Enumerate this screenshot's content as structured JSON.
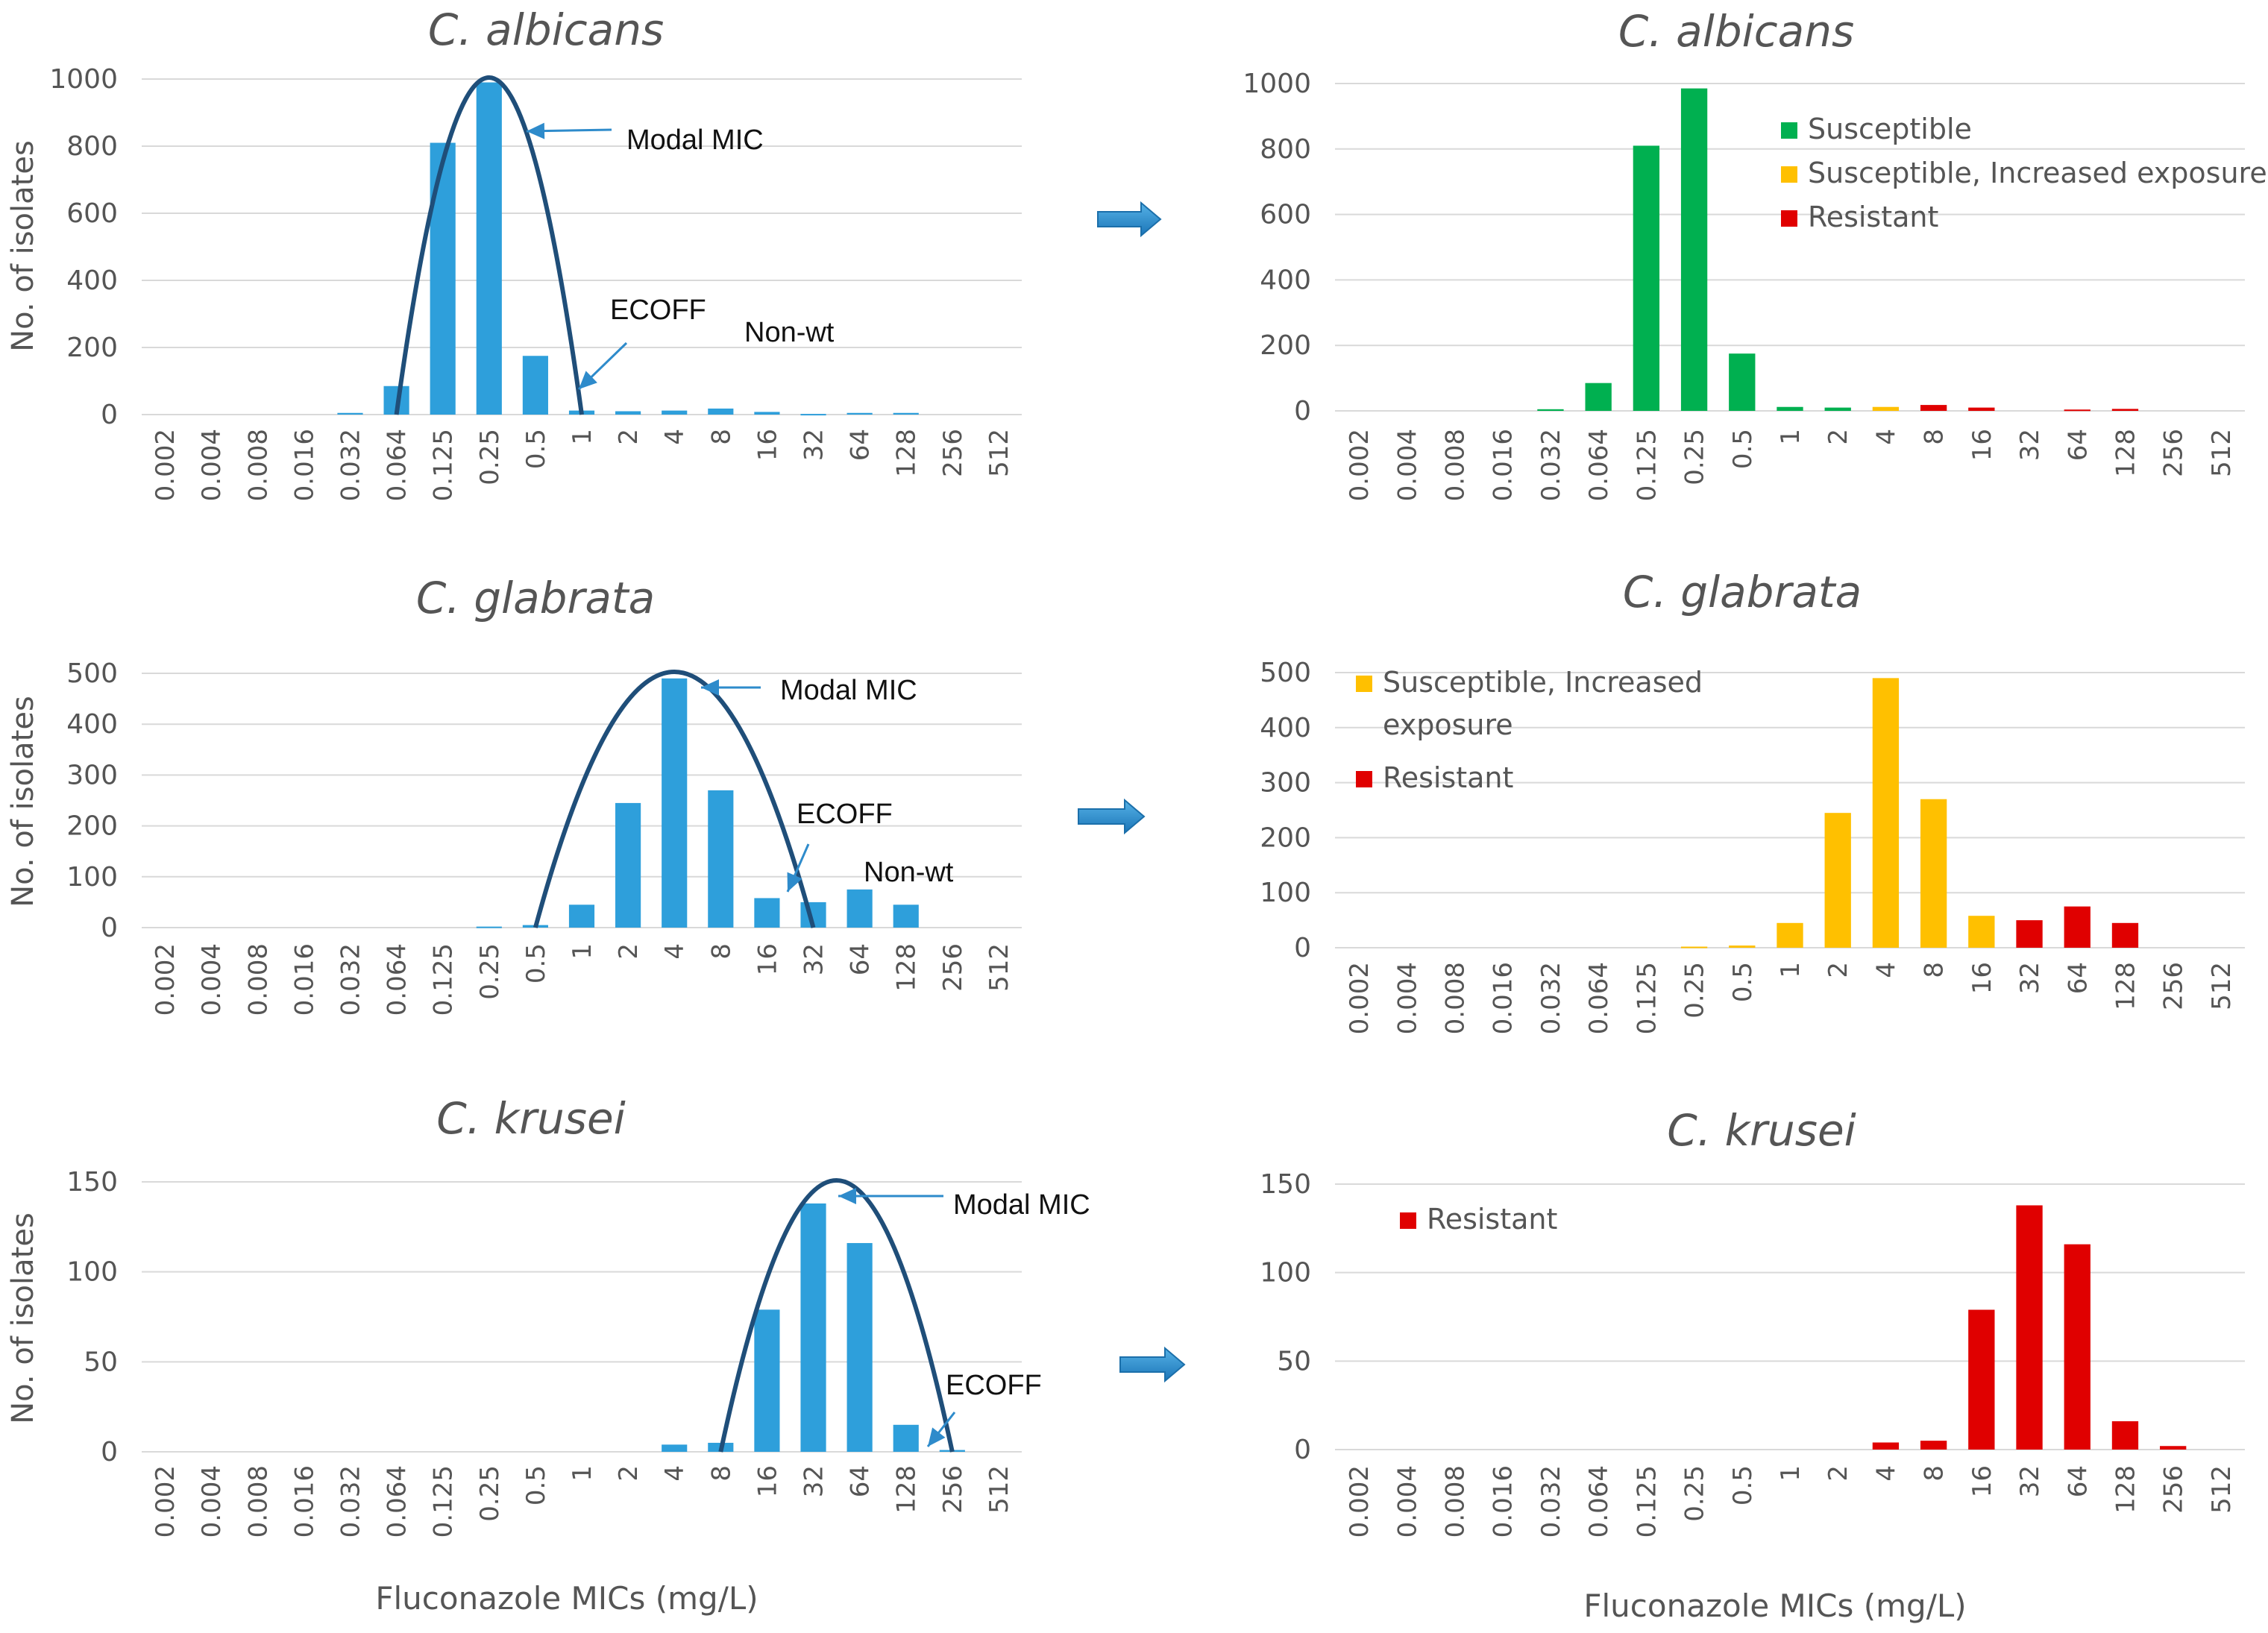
{
  "colors": {
    "wt_bar": "#2E9FDB",
    "curve": "#1F4E79",
    "arrow": "#2E8BCB",
    "susceptible": "#00B050",
    "increased": "#FFC000",
    "resistant": "#E00000",
    "grid": "#D9D9D9",
    "text": "#555555"
  },
  "chart_data": [
    {
      "id": "albicans-ecoff",
      "type": "bar",
      "title": "C. albicans",
      "xlabel": "",
      "ylabel": "No. of isolates",
      "ylim": [
        0,
        1000
      ],
      "yticks": [
        0,
        200,
        400,
        600,
        800,
        1000
      ],
      "categories": [
        "0.002",
        "0.004",
        "0.008",
        "0.016",
        "0.032",
        "0.064",
        "0.125",
        "0.25",
        "0.5",
        "1",
        "2",
        "4",
        "8",
        "16",
        "32",
        "64",
        "128",
        "256",
        "512"
      ],
      "values": [
        0,
        0,
        0,
        0,
        5,
        85,
        810,
        990,
        175,
        12,
        10,
        12,
        18,
        8,
        2,
        5,
        5,
        0,
        0
      ],
      "curve": {
        "label": "wild-type distribution",
        "from": "0.064",
        "to": "1"
      },
      "annotations": [
        {
          "text": "Modal MIC",
          "points_to": "0.25"
        },
        {
          "text": "ECOFF",
          "points_to": "1"
        },
        {
          "text": "Non-wt",
          "points_to": "above 1"
        }
      ]
    },
    {
      "id": "albicans-breakpoints",
      "type": "bar",
      "title": "C. albicans",
      "xlabel": "",
      "ylabel": "",
      "ylim": [
        0,
        1000
      ],
      "yticks": [
        0,
        200,
        400,
        600,
        800,
        1000
      ],
      "categories": [
        "0.002",
        "0.004",
        "0.008",
        "0.016",
        "0.032",
        "0.064",
        "0.125",
        "0.25",
        "0.5",
        "1",
        "2",
        "4",
        "8",
        "16",
        "32",
        "64",
        "128",
        "256",
        "512"
      ],
      "values": [
        0,
        0,
        0,
        0,
        5,
        85,
        810,
        985,
        175,
        12,
        10,
        12,
        18,
        10,
        0,
        4,
        6,
        0,
        0
      ],
      "bar_categories": [
        "S",
        "S",
        "S",
        "S",
        "S",
        "S",
        "S",
        "S",
        "S",
        "S",
        "S",
        "I",
        "R",
        "R",
        "R",
        "R",
        "R",
        "R",
        "R"
      ],
      "legend": [
        {
          "key": "S",
          "label": "Susceptible"
        },
        {
          "key": "I",
          "label": "Susceptible, Increased exposure"
        },
        {
          "key": "R",
          "label": "Resistant"
        }
      ],
      "legend_position": "top-right"
    },
    {
      "id": "glabrata-ecoff",
      "type": "bar",
      "title": "C. glabrata",
      "xlabel": "",
      "ylabel": "No. of isolates",
      "ylim": [
        0,
        500
      ],
      "yticks": [
        0,
        100,
        200,
        300,
        400,
        500
      ],
      "categories": [
        "0.002",
        "0.004",
        "0.008",
        "0.016",
        "0.032",
        "0.064",
        "0.125",
        "0.25",
        "0.5",
        "1",
        "2",
        "4",
        "8",
        "16",
        "32",
        "64",
        "128",
        "256",
        "512"
      ],
      "values": [
        0,
        0,
        0,
        0,
        0,
        0,
        0,
        2,
        5,
        45,
        245,
        490,
        270,
        58,
        50,
        75,
        45,
        0,
        0
      ],
      "curve": {
        "label": "wild-type distribution",
        "from": "0.5",
        "to": "32"
      },
      "annotations": [
        {
          "text": "Modal MIC",
          "points_to": "4"
        },
        {
          "text": "ECOFF",
          "points_to": "16"
        },
        {
          "text": "Non-wt",
          "points_to": "above 16"
        }
      ]
    },
    {
      "id": "glabrata-breakpoints",
      "type": "bar",
      "title": "C. glabrata",
      "xlabel": "",
      "ylabel": "",
      "ylim": [
        0,
        500
      ],
      "yticks": [
        0,
        100,
        200,
        300,
        400,
        500
      ],
      "categories": [
        "0.002",
        "0.004",
        "0.008",
        "0.016",
        "0.032",
        "0.064",
        "0.125",
        "0.25",
        "0.5",
        "1",
        "2",
        "4",
        "8",
        "16",
        "32",
        "64",
        "128",
        "256",
        "512"
      ],
      "values": [
        0,
        0,
        0,
        0,
        0,
        0,
        0,
        2,
        4,
        45,
        245,
        490,
        270,
        58,
        50,
        75,
        45,
        0,
        0
      ],
      "bar_categories": [
        "I",
        "I",
        "I",
        "I",
        "I",
        "I",
        "I",
        "I",
        "I",
        "I",
        "I",
        "I",
        "I",
        "I",
        "R",
        "R",
        "R",
        "R",
        "R"
      ],
      "legend": [
        {
          "key": "I",
          "label_lines": [
            "Susceptible, Increased",
            "exposure"
          ]
        },
        {
          "key": "R",
          "label_lines": [
            "Resistant"
          ]
        }
      ],
      "legend_position": "top-left"
    },
    {
      "id": "krusei-ecoff",
      "type": "bar",
      "title": "C. krusei",
      "xlabel": "Fluconazole MICs (mg/L)",
      "ylabel": "No. of isolates",
      "ylim": [
        0,
        150
      ],
      "yticks": [
        0,
        50,
        100,
        150
      ],
      "categories": [
        "0.002",
        "0.004",
        "0.008",
        "0.016",
        "0.032",
        "0.064",
        "0.125",
        "0.25",
        "0.5",
        "1",
        "2",
        "4",
        "8",
        "16",
        "32",
        "64",
        "128",
        "256",
        "512"
      ],
      "values": [
        0,
        0,
        0,
        0,
        0,
        0,
        0,
        0,
        0,
        0,
        0,
        4,
        5,
        79,
        138,
        116,
        15,
        1,
        0
      ],
      "curve": {
        "label": "wild-type distribution",
        "from": "8",
        "to": "256"
      },
      "annotations": [
        {
          "text": "Modal MIC",
          "points_to": "32"
        },
        {
          "text": "ECOFF",
          "points_to": "128"
        }
      ]
    },
    {
      "id": "krusei-breakpoints",
      "type": "bar",
      "title": "C. krusei",
      "xlabel": "Fluconazole MICs (mg/L)",
      "ylabel": "",
      "ylim": [
        0,
        150
      ],
      "yticks": [
        0,
        50,
        100,
        150
      ],
      "categories": [
        "0.002",
        "0.004",
        "0.008",
        "0.016",
        "0.032",
        "0.064",
        "0.125",
        "0.25",
        "0.5",
        "1",
        "2",
        "4",
        "8",
        "16",
        "32",
        "64",
        "128",
        "256",
        "512"
      ],
      "values": [
        0,
        0,
        0,
        0,
        0,
        0,
        0,
        0,
        0,
        0,
        0,
        4,
        5,
        79,
        138,
        116,
        16,
        2,
        0
      ],
      "bar_categories": [
        "R",
        "R",
        "R",
        "R",
        "R",
        "R",
        "R",
        "R",
        "R",
        "R",
        "R",
        "R",
        "R",
        "R",
        "R",
        "R",
        "R",
        "R",
        "R"
      ],
      "legend": [
        {
          "key": "R",
          "label": "Resistant"
        }
      ],
      "legend_position": "top-left"
    }
  ]
}
